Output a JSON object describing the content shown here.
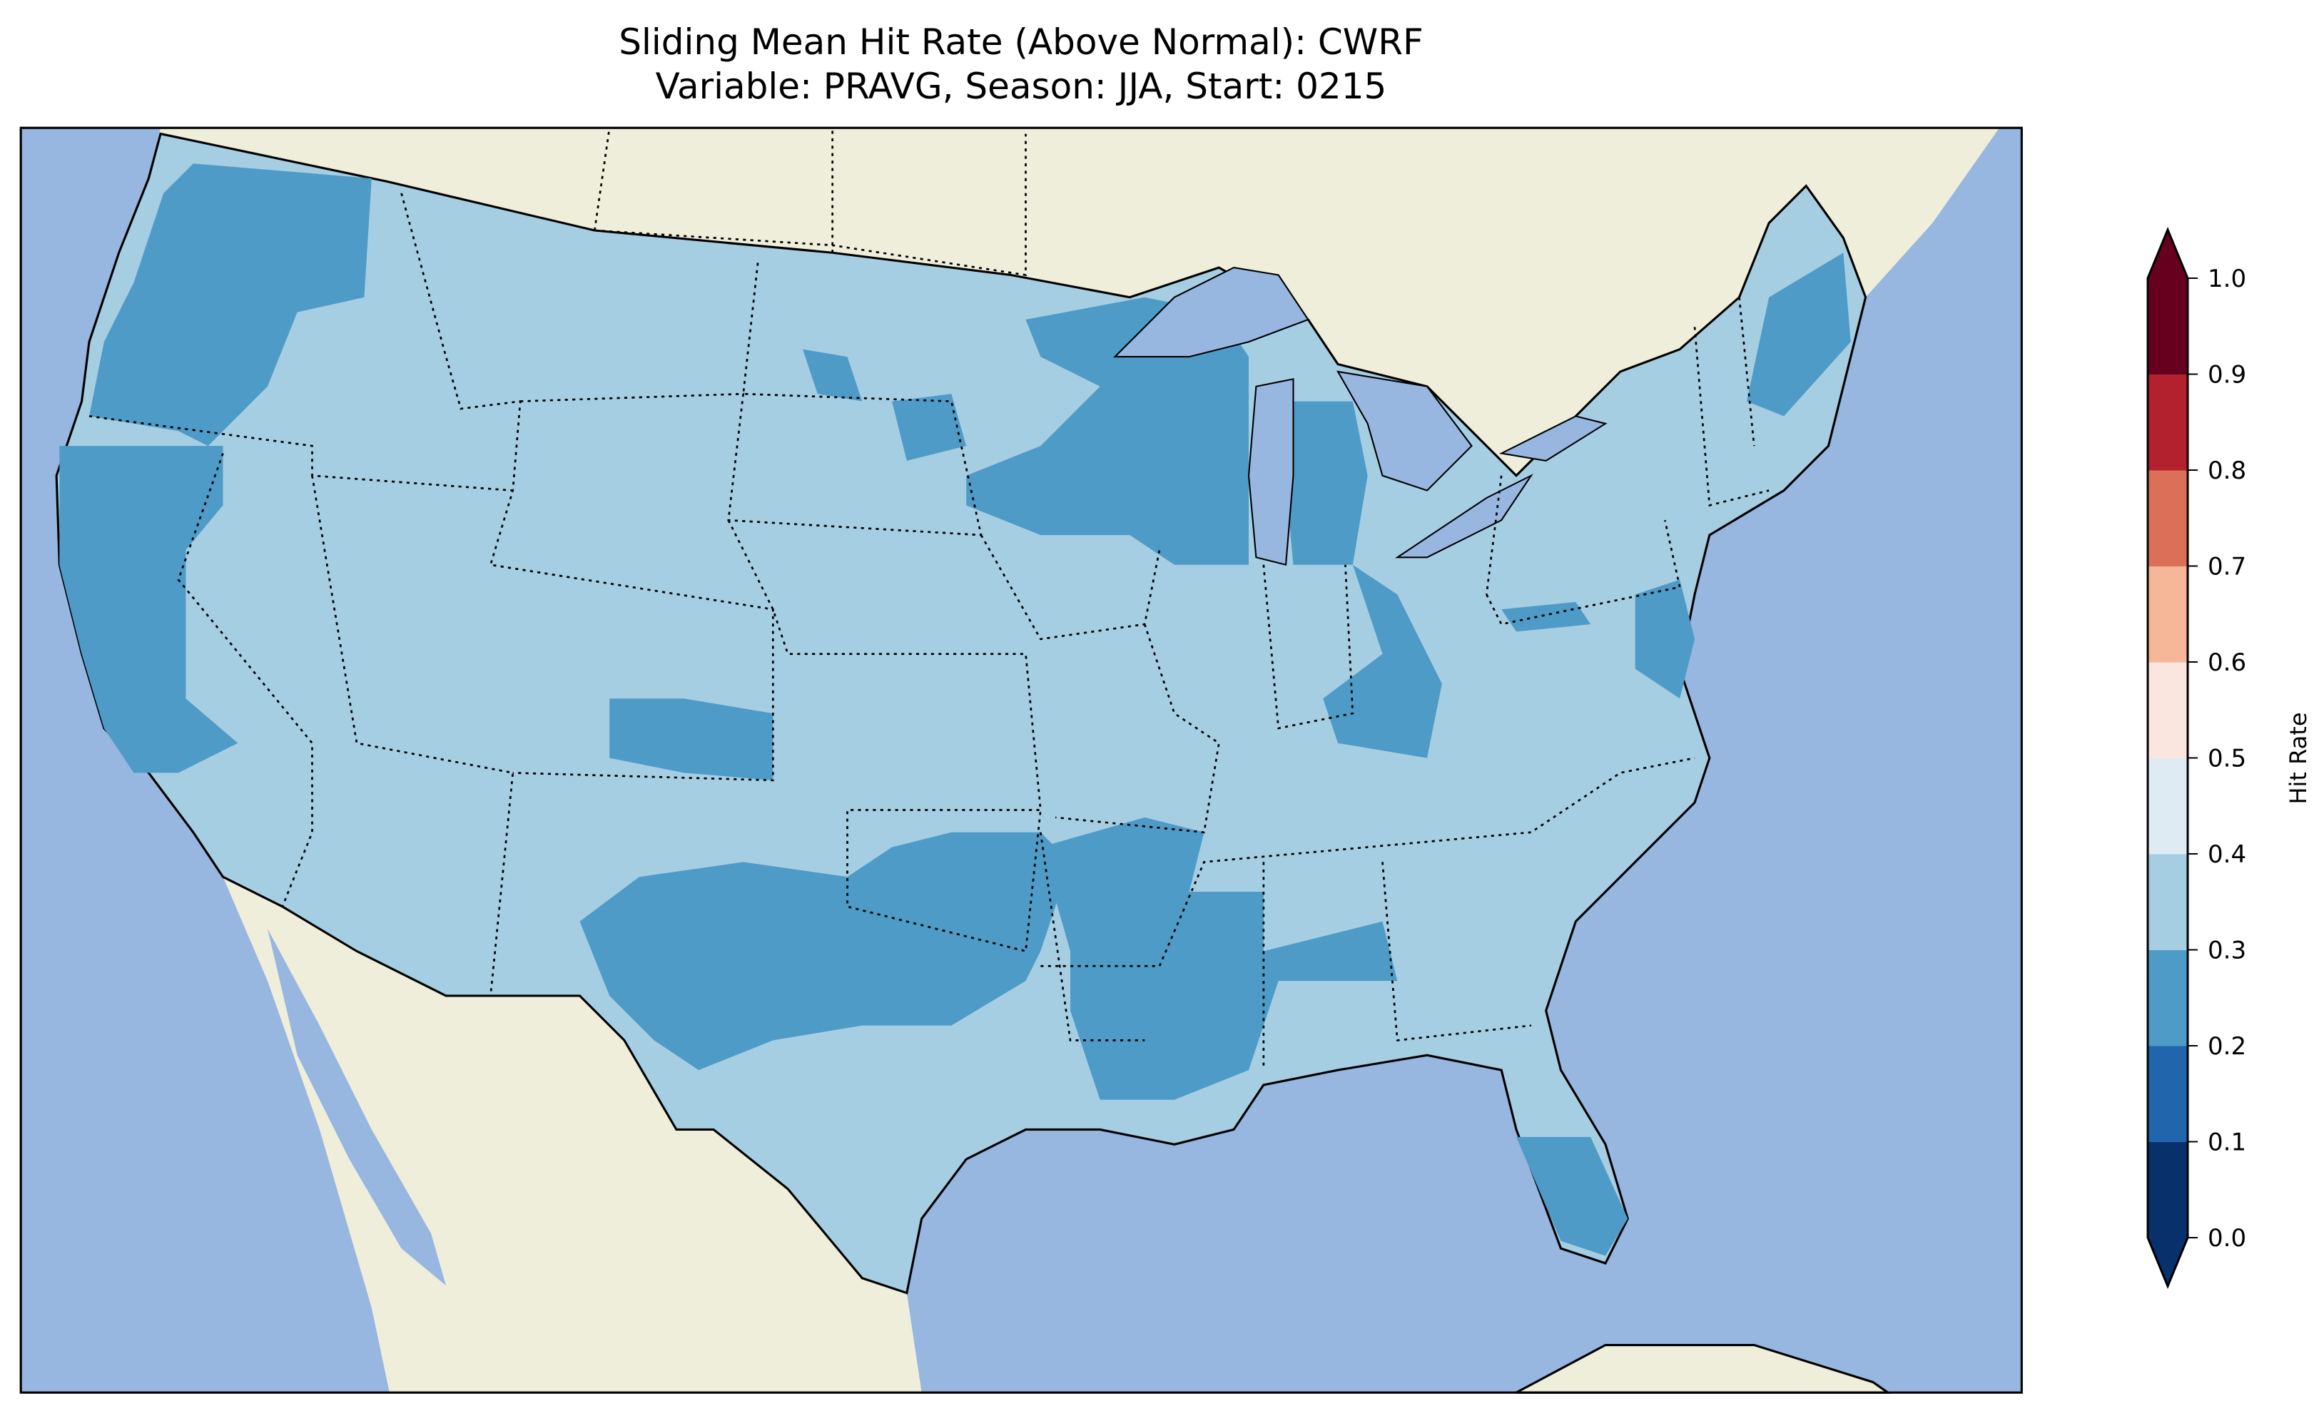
{
  "chart_data": {
    "type": "heatmap",
    "title": "Sliding Mean Hit Rate (Above Normal): CWRF",
    "subtitle": "Variable: PRAVG, Season: JJA, Start: 0215",
    "region": "Contiguous United States",
    "colorbar": {
      "label": "Hit Rate",
      "range": [
        0.0,
        1.0
      ],
      "extend": "both",
      "ticks": [
        "0.0",
        "0.1",
        "0.2",
        "0.3",
        "0.4",
        "0.5",
        "0.6",
        "0.7",
        "0.8",
        "0.9",
        "1.0"
      ],
      "levels": [
        0.0,
        0.1,
        0.2,
        0.3,
        0.4,
        0.5,
        0.6,
        0.7,
        0.8,
        0.9,
        1.0
      ],
      "colors": [
        "#08306b",
        "#2166ac",
        "#4f9bc7",
        "#a6cee3",
        "#deebf2",
        "#fae6de",
        "#f5b797",
        "#dc6f58",
        "#b2212d",
        "#67001f"
      ]
    },
    "observed_bins": [
      "0.2-0.3",
      "0.3-0.4"
    ],
    "colors": {
      "ocean": "#97b6e0",
      "land": "#efeedb",
      "low": "#4f9bc7",
      "mid": "#a6cee3"
    }
  }
}
